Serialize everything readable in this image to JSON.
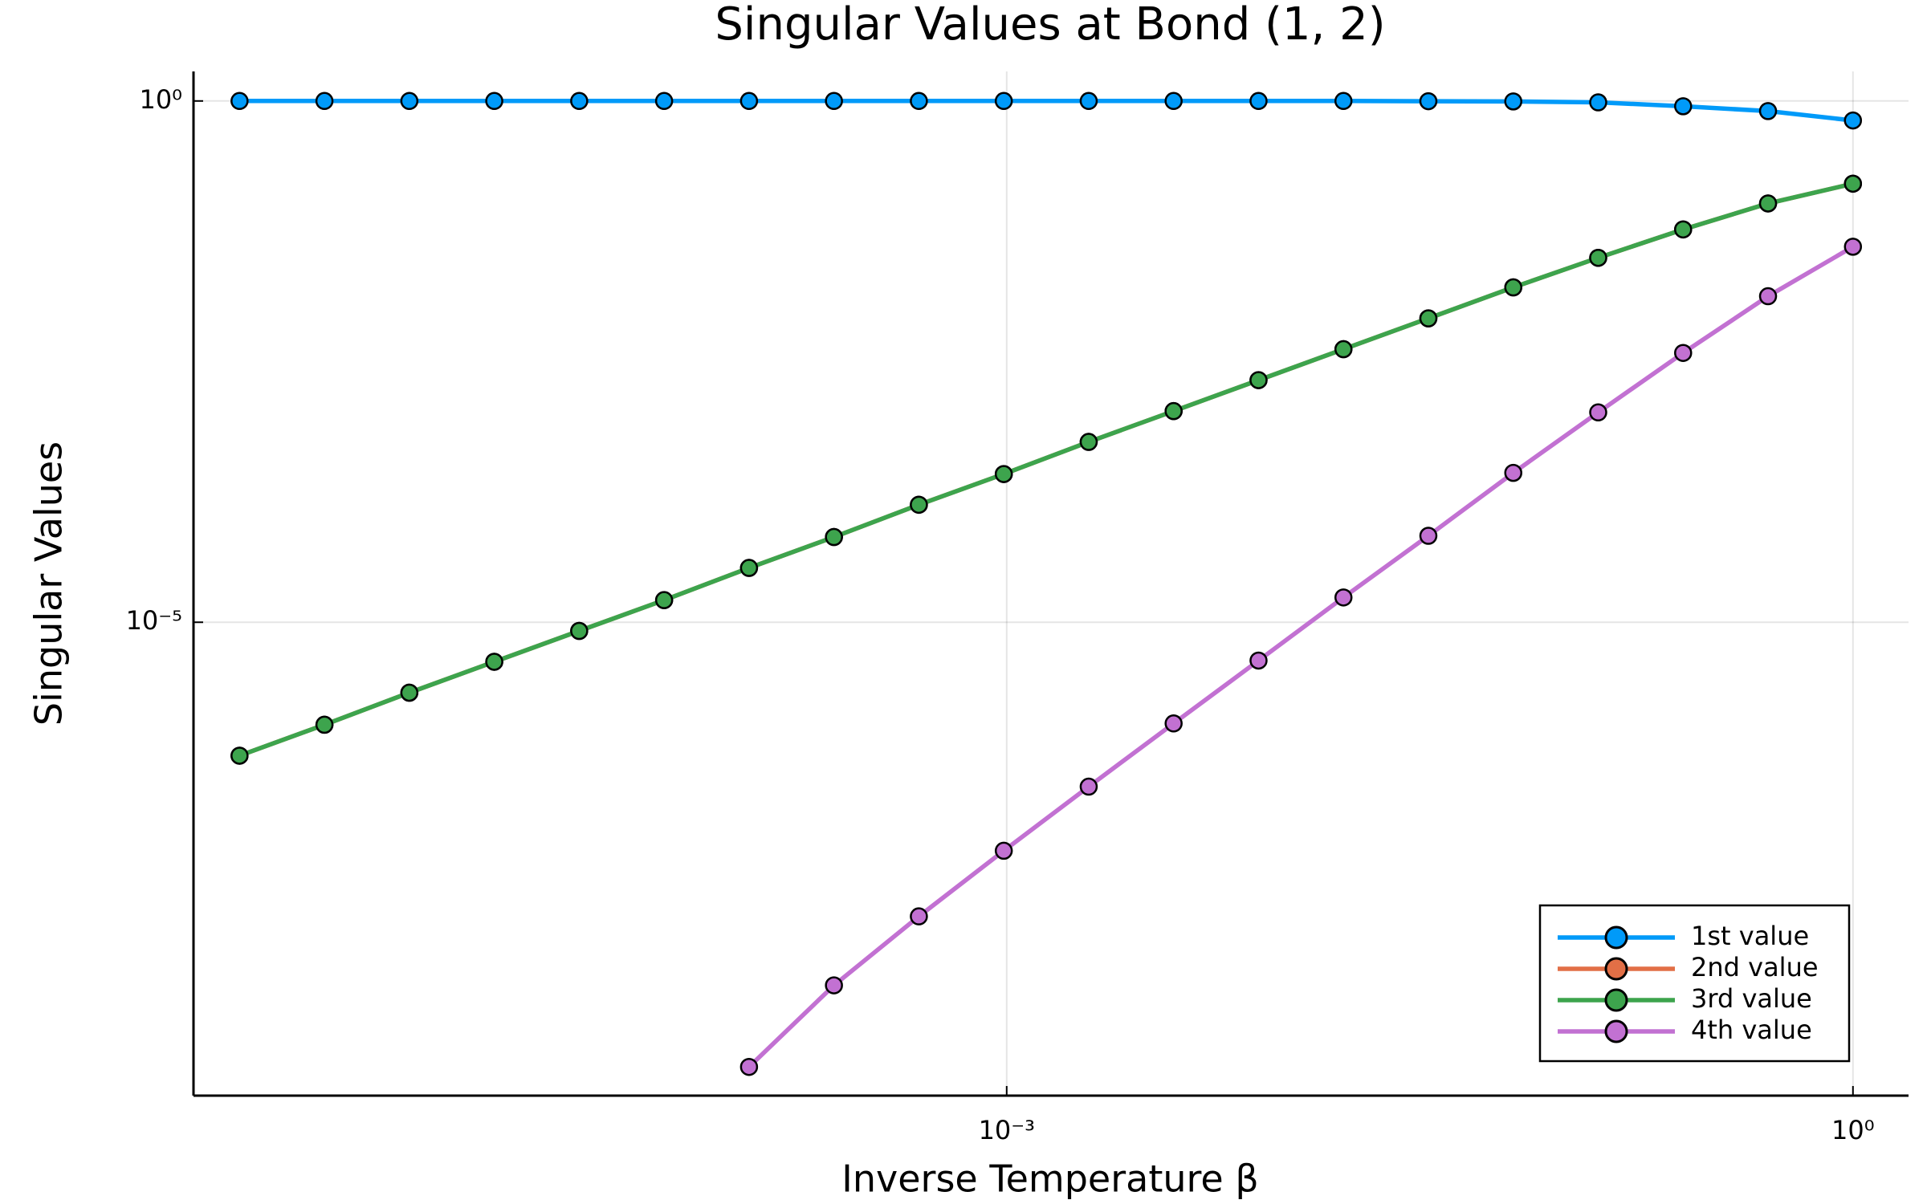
{
  "chart_data": {
    "type": "line",
    "title": "Singular Values at Bond (1, 2)",
    "x_label": "Inverse Temperature β",
    "y_label": "Singular Values",
    "x_scale": "log",
    "y_scale": "log",
    "grid": true,
    "legend_position": "bottom-right",
    "x": [
      1.9073486328125e-06,
      3.814697265625e-06,
      7.62939453125e-06,
      1.52587890625e-05,
      3.0517578125e-05,
      6.103515625e-05,
      0.0001220703125,
      0.000244140625,
      0.00048828125,
      0.0009765625,
      0.001953125,
      0.00390625,
      0.0078125,
      0.015625,
      0.03125,
      0.0625,
      0.125,
      0.25,
      0.5,
      1
    ],
    "series": [
      {
        "name": "1st value",
        "color": "#009af9",
        "values": [
          1,
          1,
          1,
          1,
          1,
          1,
          1,
          1,
          1,
          1,
          1,
          1,
          1,
          1,
          0.995,
          0.99,
          0.97,
          0.89,
          0.8,
          0.65
        ]
      },
      {
        "name": "2nd value",
        "color": "#e26f46",
        "values": [
          5.25e-07,
          1.04e-06,
          2.11e-06,
          4.18e-06,
          8.26e-06,
          1.63e-05,
          3.32e-05,
          6.57e-05,
          0.000134,
          0.000264,
          0.000537,
          0.00106,
          0.0021,
          0.00416,
          0.00822,
          0.0163,
          0.0313,
          0.0586,
          0.104,
          0.161
        ]
      },
      {
        "name": "3rd value",
        "color": "#3da44d",
        "values": [
          5.25e-07,
          1.04e-06,
          2.11e-06,
          4.18e-06,
          8.26e-06,
          1.63e-05,
          3.32e-05,
          6.57e-05,
          0.000134,
          0.000264,
          0.000537,
          0.00106,
          0.0021,
          0.00416,
          0.00822,
          0.0163,
          0.0313,
          0.0586,
          0.104,
          0.161
        ]
      },
      {
        "name": "4th value",
        "color": "#c271d2",
        "values": [
          null,
          null,
          null,
          null,
          null,
          null,
          5.43e-10,
          3.29e-09,
          1.51e-08,
          6.43e-08,
          2.65e-07,
          1.07e-06,
          4.29e-06,
          1.73e-05,
          6.75e-05,
          0.000271,
          0.00103,
          0.00383,
          0.0134,
          0.04
        ]
      }
    ],
    "xlim": [
      1.31e-06,
      1.574
    ],
    "ylim": [
      2.88e-10,
      1.92
    ],
    "xticks": [
      {
        "value": 0.001,
        "label": "10⁻³"
      },
      {
        "value": 1,
        "label": "10⁰"
      }
    ],
    "yticks": [
      {
        "value": 1e-05,
        "label": "10⁻⁵"
      },
      {
        "value": 1,
        "label": "10⁰"
      }
    ]
  }
}
